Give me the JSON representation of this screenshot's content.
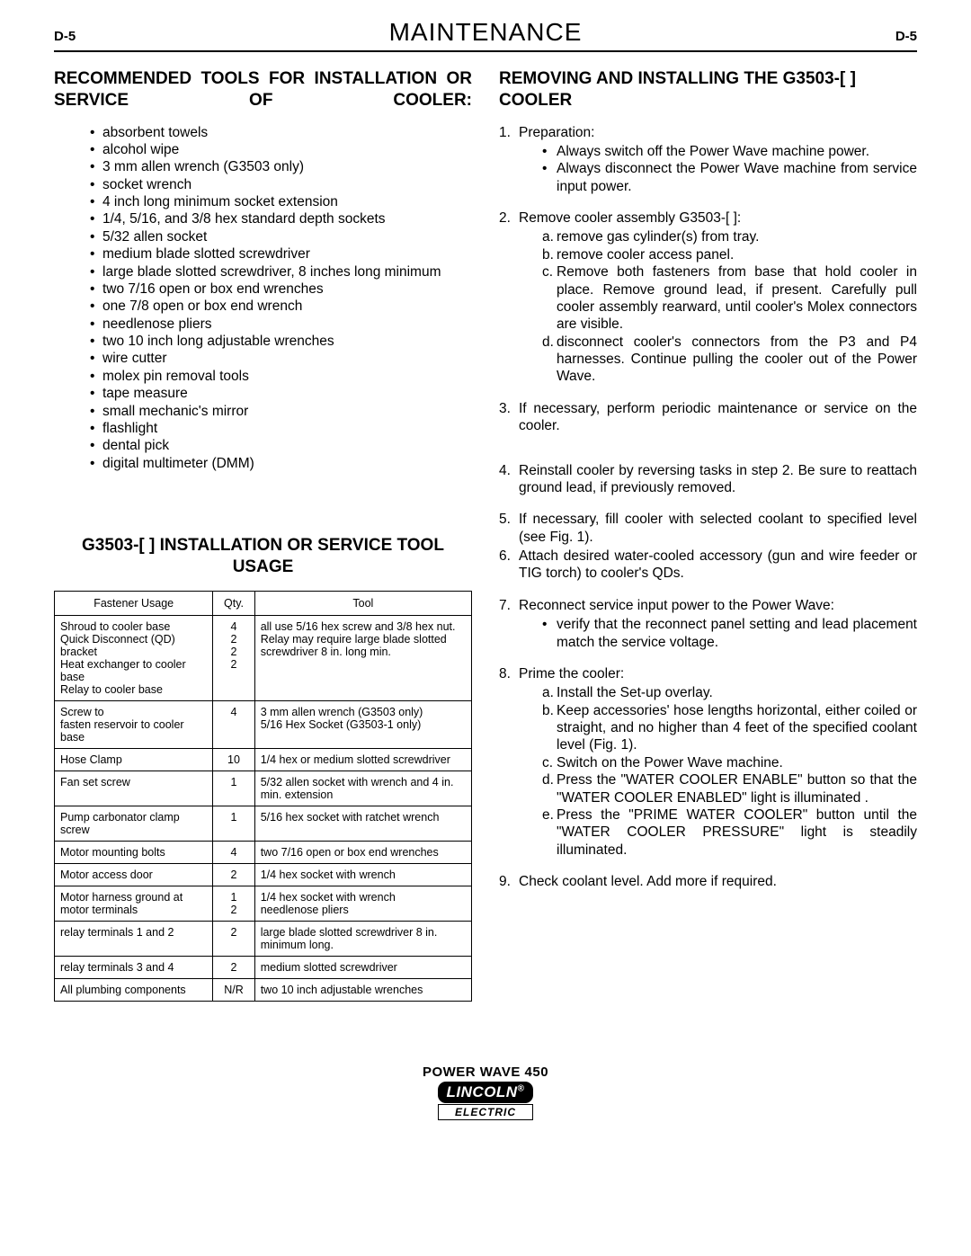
{
  "header": {
    "left": "D-5",
    "title": "MAINTENANCE",
    "right": "D-5"
  },
  "left_col": {
    "tools_heading": "RECOMMENDED TOOLS FOR INSTALLATION OR SERVICE OF COOLER:",
    "tools": [
      "absorbent towels",
      "alcohol wipe",
      "3 mm allen wrench (G3503 only)",
      "socket wrench",
      "4 inch long minimum socket extension",
      "1/4, 5/16, and 3/8 hex standard depth sockets",
      "5/32 allen socket",
      "medium blade slotted screwdriver",
      "large blade slotted screwdriver, 8 inches long minimum",
      "two 7/16 open or box end wrenches",
      "one 7/8 open or box end wrench",
      "needlenose pliers",
      "two 10 inch long adjustable wrenches",
      "wire cutter",
      "molex pin removal tools",
      "tape measure",
      "small mechanic's mirror",
      "flashlight",
      "dental pick",
      "digital multimeter (DMM)"
    ],
    "usage_heading": "G3503-[ ] INSTALLATION OR SERVICE TOOL USAGE",
    "table": {
      "columns": [
        "Fastener Usage",
        "Qty.",
        "Tool"
      ],
      "col_widths": [
        "38%",
        "10%",
        "52%"
      ],
      "rows": [
        {
          "usage": "Shroud to cooler base\nQuick Disconnect (QD) bracket\nHeat exchanger to cooler base\nRelay to cooler base",
          "qty": "4\n2\n2\n2",
          "tool": "all use 5/16 hex screw and 3/8 hex nut. Relay may require large blade slotted screwdriver 8 in. long min."
        },
        {
          "usage": "Screw to\nfasten reservoir to cooler base",
          "qty": "4",
          "tool": "3 mm allen wrench (G3503 only)\n5/16 Hex Socket (G3503-1 only)"
        },
        {
          "usage": "Hose Clamp",
          "qty": "10",
          "tool": "1/4 hex or medium slotted screwdriver"
        },
        {
          "usage": "Fan set screw",
          "qty": "1",
          "tool": "5/32 allen socket with wrench and 4 in. min. extension"
        },
        {
          "usage": "Pump carbonator clamp screw",
          "qty": "1",
          "tool": "5/16 hex socket with ratchet wrench"
        },
        {
          "usage": "Motor mounting bolts",
          "qty": "4",
          "tool": "two 7/16 open or box end wrenches"
        },
        {
          "usage": "Motor access door",
          "qty": "2",
          "tool": "1/4 hex socket with wrench"
        },
        {
          "usage": "Motor harness ground at motor terminals",
          "qty": "1\n2",
          "tool": "1/4 hex socket with wrench\nneedlenose pliers"
        },
        {
          "usage": "relay terminals 1 and 2",
          "qty": "2",
          "tool": "large blade slotted screwdriver 8 in. minimum long."
        },
        {
          "usage": "relay terminals 3 and 4",
          "qty": "2",
          "tool": "medium slotted screwdriver"
        },
        {
          "usage": "All plumbing components",
          "qty": "N/R",
          "tool": "two 10 inch adjustable wrenches"
        }
      ]
    }
  },
  "right_col": {
    "removing_heading": "REMOVING AND INSTALLING THE G3503-[ ] COOLER",
    "steps": [
      {
        "text": "Preparation:",
        "bullets": [
          "Always switch off the Power Wave machine power.",
          "Always disconnect the Power Wave machine from service input power."
        ]
      },
      {
        "text": "Remove cooler assembly G3503-[ ]:",
        "letters": [
          "remove gas cylinder(s) from tray.",
          "remove cooler access panel.",
          "Remove both fasteners from base that hold cooler in place. Remove ground lead, if present. Carefully pull cooler assembly rearward, until cooler's Molex connectors are visible.",
          "disconnect cooler's connectors from the P3 and P4 harnesses. Continue pulling the cooler out of the Power Wave."
        ]
      },
      {
        "text": "If necessary, perform periodic maintenance or service on the cooler."
      },
      {
        "text": "Reinstall cooler by reversing tasks in step 2. Be sure to reattach ground lead, if previously removed."
      },
      {
        "text": "If necessary, fill cooler with selected coolant to specified level (see Fig. 1)."
      },
      {
        "text": "Attach desired water-cooled accessory (gun and wire feeder or TIG torch) to cooler's QDs."
      },
      {
        "text": "Reconnect service input power to the Power Wave:",
        "bullets": [
          "verify that the reconnect panel setting and lead placement match the service voltage."
        ]
      },
      {
        "text": "Prime the cooler:",
        "letters": [
          "Install the Set-up overlay.",
          "Keep accessories' hose lengths horizontal, either coiled or straight, and no higher than 4 feet of the specified coolant level (Fig. 1).",
          "Switch on the Power Wave machine.",
          "Press the \"WATER COOLER ENABLE\" button so that the \"WATER COOLER ENABLED\" light is illuminated .",
          "Press the \"PRIME WATER COOLER\" button until the \"WATER COOLER PRESSURE\" light is steadily illuminated."
        ]
      },
      {
        "text": "Check coolant level. Add more if required."
      }
    ]
  },
  "footer": {
    "product": "POWER WAVE 450",
    "logo_top": "LINCOLN",
    "logo_bottom": "ELECTRIC"
  }
}
